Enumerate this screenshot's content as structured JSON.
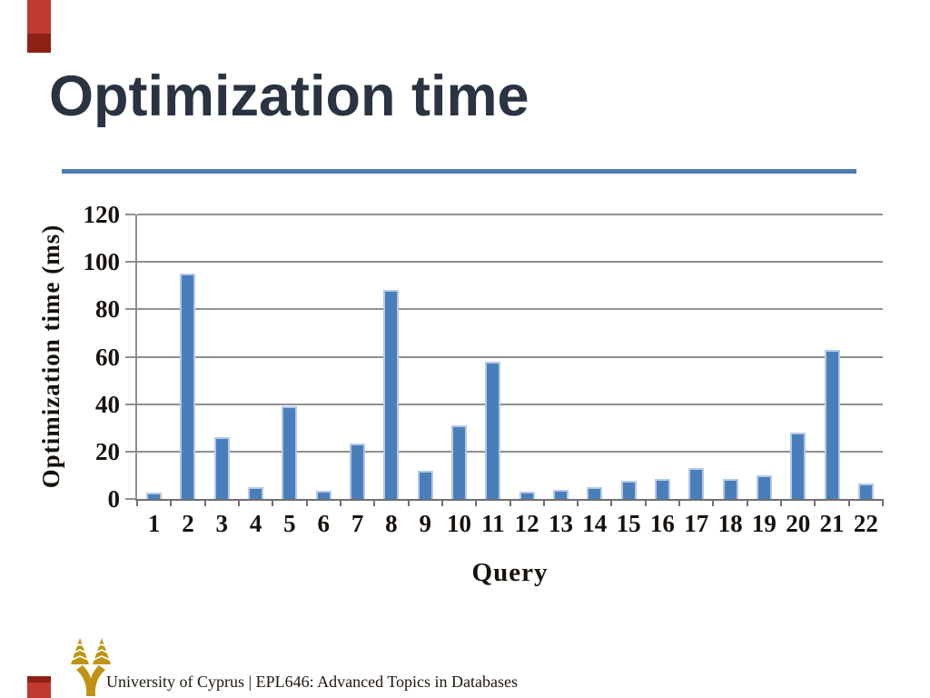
{
  "slide": {
    "title": "Optimization time",
    "title_color": "#2a3342",
    "rule_color": "#4e7bb0",
    "accent_light": "#c03a30",
    "accent_dark": "#8e2016"
  },
  "chart_data": {
    "type": "bar",
    "title": "",
    "xlabel": "Query",
    "ylabel": "Optimization time (ms)",
    "categories": [
      "1",
      "2",
      "3",
      "4",
      "5",
      "6",
      "7",
      "8",
      "9",
      "10",
      "11",
      "12",
      "13",
      "14",
      "15",
      "16",
      "17",
      "18",
      "19",
      "20",
      "21",
      "22"
    ],
    "values": [
      2.5,
      95,
      26,
      5,
      39,
      3.5,
      23.5,
      88,
      12,
      31,
      58,
      3,
      4,
      5,
      7.5,
      8.5,
      13,
      8.5,
      10,
      28,
      63,
      6.5
    ],
    "ylim": [
      0,
      120
    ],
    "yticks": [
      0,
      20,
      40,
      60,
      80,
      100,
      120
    ],
    "grid": true,
    "legend": "none",
    "bar_color": "#4a7ebb",
    "bar_edge_color": "#b3c9e6",
    "gridline_color": "#8f8f8f"
  },
  "footer": {
    "text": "University of Cyprus | EPL646: Advanced Topics in Databases",
    "logo": "university-of-cyprus-tree-logo",
    "logo_color": "#bf9315"
  }
}
